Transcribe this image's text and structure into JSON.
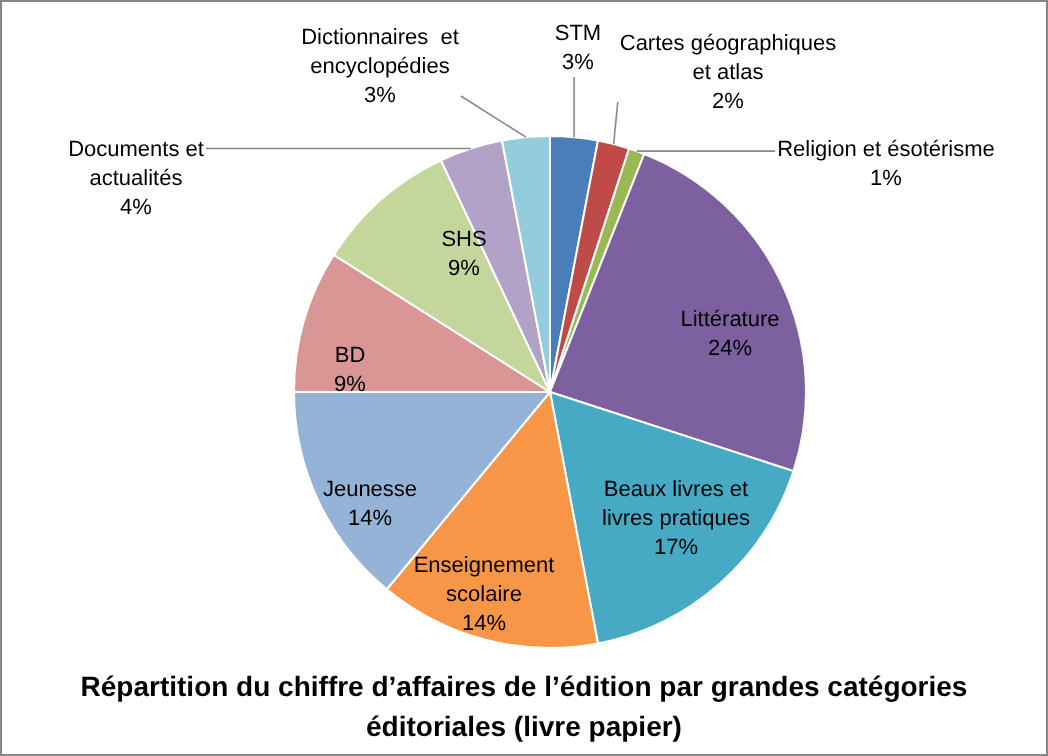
{
  "chart_data": {
    "type": "pie",
    "title": "Répartition du chiffre d’affaires de l’édition par grandes catégories éditoriales (livre papier)",
    "categories": [
      "STM",
      "Cartes géographiques et atlas",
      "Religion et ésotérisme",
      "Littérature",
      "Beaux livres et livres pratiques",
      "Enseignement scolaire",
      "Jeunesse",
      "BD",
      "SHS",
      "Documents et actualités",
      "Dictionnaires  et encyclopédies"
    ],
    "values": [
      3,
      2,
      1,
      24,
      17,
      14,
      14,
      9,
      9,
      4,
      3
    ],
    "value_labels": [
      "3%",
      "2%",
      "1%",
      "24%",
      "17%",
      "14%",
      "14%",
      "9%",
      "9%",
      "4%",
      "3%"
    ],
    "colors": [
      "#4a7ebb",
      "#be4b48",
      "#98b954",
      "#7d60a0",
      "#46aac5",
      "#f79646",
      "#95b3d7",
      "#d99694",
      "#c3d69b",
      "#b3a2c7",
      "#93cddd"
    ]
  }
}
